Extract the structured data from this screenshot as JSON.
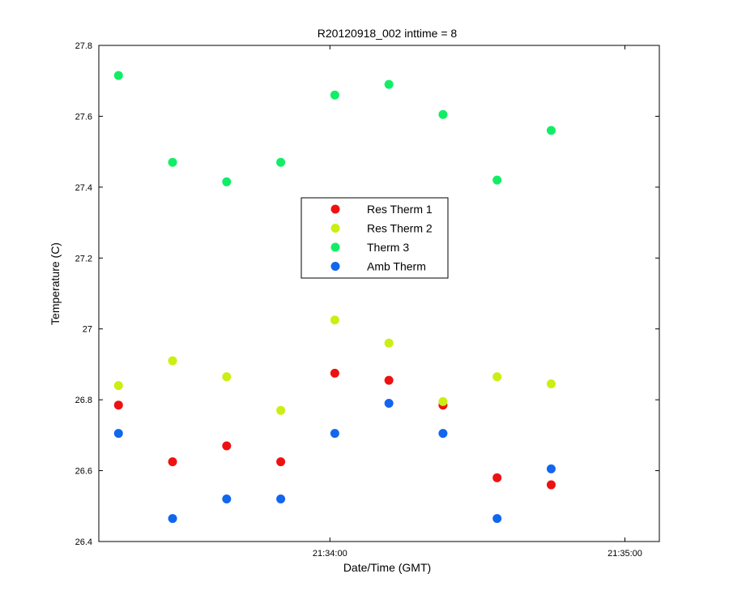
{
  "chart_data": {
    "type": "scatter",
    "title": "R20120918_002 inttime = 8",
    "xlabel": "Date/Time (GMT)",
    "ylabel": "Temperature (C)",
    "x_is_time": true,
    "xlim": [
      "21:33:13",
      "21:35:07"
    ],
    "ylim": [
      26.4,
      27.8
    ],
    "yticks": [
      26.4,
      26.6,
      26.8,
      27,
      27.2,
      27.4,
      27.6,
      27.8
    ],
    "ytick_labels": [
      "26.4",
      "26.6",
      "26.8",
      "27",
      "27.2",
      "27.4",
      "27.6",
      "27.8"
    ],
    "xticks": [
      "21:34:00",
      "21:35:00"
    ],
    "xtick_labels": [
      "21:34:00",
      "21:35:00"
    ],
    "grid": false,
    "legend_position": "center",
    "x": [
      "21:33:17",
      "21:33:28",
      "21:33:39",
      "21:33:50",
      "21:34:01",
      "21:34:12",
      "21:34:23",
      "21:34:34",
      "21:34:45"
    ],
    "series": [
      {
        "name": "Res Therm 1",
        "color": "#ee1111",
        "points": [
          {
            "x": "21:33:17",
            "y": 26.785
          },
          {
            "x": "21:33:28",
            "y": 26.625
          },
          {
            "x": "21:33:39",
            "y": 26.67
          },
          {
            "x": "21:33:50",
            "y": 26.625
          },
          {
            "x": "21:34:01",
            "y": 26.875
          },
          {
            "x": "21:34:12",
            "y": 26.855
          },
          {
            "x": "21:34:23",
            "y": 26.785
          },
          {
            "x": "21:34:34",
            "y": 26.58
          },
          {
            "x": "21:34:45",
            "y": 26.56
          }
        ]
      },
      {
        "name": "Res Therm 2",
        "color": "#ccee11",
        "points": [
          {
            "x": "21:33:17",
            "y": 26.84
          },
          {
            "x": "21:33:28",
            "y": 26.91
          },
          {
            "x": "21:33:39",
            "y": 26.865
          },
          {
            "x": "21:33:50",
            "y": 26.77
          },
          {
            "x": "21:34:01",
            "y": 27.025
          },
          {
            "x": "21:34:12",
            "y": 26.96
          },
          {
            "x": "21:34:23",
            "y": 26.795
          },
          {
            "x": "21:34:34",
            "y": 26.865
          },
          {
            "x": "21:34:45",
            "y": 26.845
          }
        ]
      },
      {
        "name": "Therm 3",
        "color": "#11ee66",
        "points": [
          {
            "x": "21:33:17",
            "y": 27.715
          },
          {
            "x": "21:33:28",
            "y": 27.47
          },
          {
            "x": "21:33:39",
            "y": 27.415
          },
          {
            "x": "21:33:50",
            "y": 27.47
          },
          {
            "x": "21:34:01",
            "y": 27.66
          },
          {
            "x": "21:34:12",
            "y": 27.69
          },
          {
            "x": "21:34:23",
            "y": 27.605
          },
          {
            "x": "21:34:34",
            "y": 27.42
          },
          {
            "x": "21:34:45",
            "y": 27.56
          }
        ]
      },
      {
        "name": "Amb Therm",
        "color": "#1166ee",
        "points": [
          {
            "x": "21:33:17",
            "y": 26.705
          },
          {
            "x": "21:33:28",
            "y": 26.465
          },
          {
            "x": "21:33:39",
            "y": 26.52
          },
          {
            "x": "21:33:50",
            "y": 26.52
          },
          {
            "x": "21:34:01",
            "y": 26.705
          },
          {
            "x": "21:34:12",
            "y": 26.79
          },
          {
            "x": "21:34:23",
            "y": 26.705
          },
          {
            "x": "21:34:34",
            "y": 26.465
          },
          {
            "x": "21:34:45",
            "y": 26.605
          }
        ]
      }
    ]
  }
}
